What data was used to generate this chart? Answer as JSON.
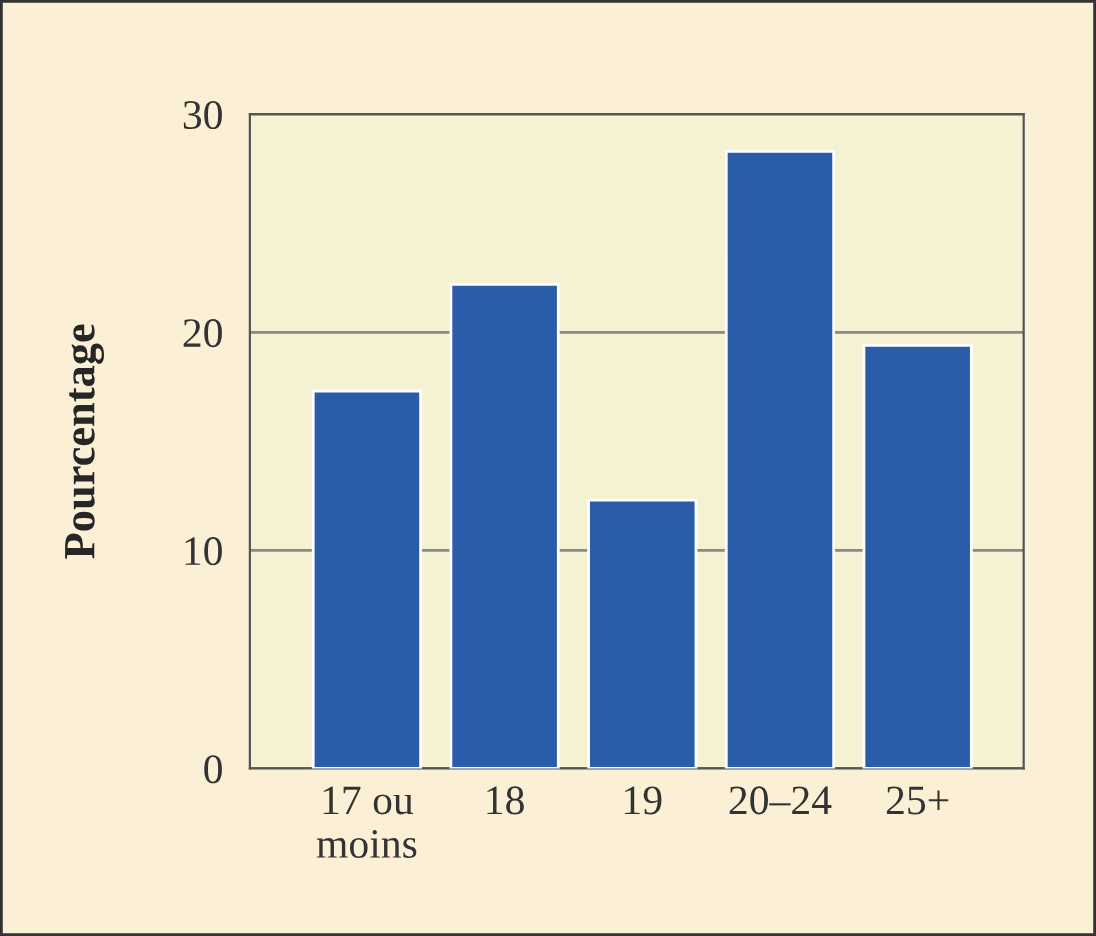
{
  "chart_data": {
    "type": "bar",
    "ylabel": "Pourcentage",
    "categories": [
      "17 ou\nmoins",
      "18",
      "19",
      "20–24",
      "25+"
    ],
    "values": [
      17.3,
      22.2,
      12.3,
      28.3,
      19.4
    ],
    "color": "#2a5caa",
    "ylim": [
      0,
      30
    ],
    "yticks": [
      0,
      10,
      20,
      30
    ],
    "grid": "y"
  }
}
